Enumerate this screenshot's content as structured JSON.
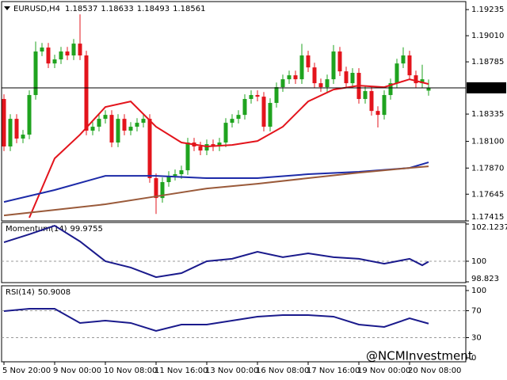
{
  "chart_data": [
    {
      "type": "candlestick",
      "title": "EURUSD,H4",
      "categories": [
        "5 Nov 20:00",
        null,
        null,
        null,
        null,
        null,
        null,
        null,
        "9 Nov 00:00",
        null,
        null,
        null,
        null,
        null,
        null,
        null,
        "10 Nov 08:00",
        null,
        null,
        null,
        null,
        null,
        null,
        null,
        "11 Nov 16:00",
        null,
        null,
        null,
        null,
        null,
        null,
        null,
        "13 Nov 00:00",
        null,
        null,
        null,
        null,
        null,
        null,
        null,
        "16 Nov 08:00",
        null,
        null,
        null,
        null,
        null,
        null,
        null,
        "17 Nov 16:00",
        null,
        null,
        null,
        null,
        null,
        null,
        null,
        "19 Nov 00:00",
        null,
        null,
        null,
        null,
        null,
        null,
        null,
        "20 Nov 08:00",
        null,
        null,
        null
      ],
      "open": [
        1.18465,
        1.18056,
        1.18294,
        1.18124,
        1.18158,
        1.18499,
        1.18874,
        1.18908,
        1.18771,
        1.18806,
        1.18874,
        1.1884,
        1.18942,
        1.1884,
        1.18192,
        1.18226,
        1.18294,
        1.18328,
        1.1809,
        1.18294,
        1.18192,
        1.18226,
        1.1826,
        1.18294,
        1.17783,
        1.17612,
        1.17749,
        1.17803,
        1.17817,
        1.17851,
        1.1809,
        1.18056,
        1.18021,
        1.18076,
        1.18056,
        1.1809,
        1.1826,
        1.18294,
        1.18328,
        1.18465,
        1.18499,
        1.18485,
        1.18226,
        1.18431,
        1.18567,
        1.18635,
        1.18669,
        1.18635,
        1.1884,
        1.18737,
        1.18601,
        1.18567,
        1.18635,
        1.18874,
        1.18703,
        1.18601,
        1.1869,
        1.18465,
        1.18533,
        1.18362,
        1.18328,
        1.18499,
        1.18601,
        1.18771,
        1.1884,
        1.18669,
        1.18601,
        1.18537
      ],
      "high": [
        1.18505,
        1.18334,
        1.18334,
        1.18198,
        1.18539,
        1.1896,
        1.18948,
        1.18948,
        1.18846,
        1.18914,
        1.18914,
        1.18982,
        1.19194,
        1.1888,
        1.18266,
        1.18334,
        1.18368,
        1.18368,
        1.18334,
        1.18334,
        1.18266,
        1.183,
        1.18334,
        1.18334,
        1.17823,
        1.17789,
        1.17843,
        1.17857,
        1.17891,
        1.1813,
        1.1813,
        1.18096,
        1.18116,
        1.18116,
        1.1813,
        1.183,
        1.18334,
        1.18368,
        1.18505,
        1.18539,
        1.18539,
        1.18525,
        1.18471,
        1.18607,
        1.18675,
        1.18709,
        1.18709,
        1.1894,
        1.1888,
        1.18777,
        1.18641,
        1.18675,
        1.1893,
        1.18914,
        1.18743,
        1.1873,
        1.1873,
        1.18573,
        1.18573,
        1.18402,
        1.18539,
        1.18641,
        1.18811,
        1.1891,
        1.1888,
        1.18709,
        1.1876,
        1.18633
      ],
      "low": [
        1.18016,
        1.18016,
        1.18084,
        1.18084,
        1.18118,
        1.18459,
        1.18834,
        1.18731,
        1.18731,
        1.18766,
        1.188,
        1.188,
        1.188,
        1.18152,
        1.18152,
        1.18186,
        1.18254,
        1.1805,
        1.1805,
        1.18152,
        1.18152,
        1.18186,
        1.1822,
        1.17743,
        1.17475,
        1.17572,
        1.17709,
        1.17763,
        1.17777,
        1.17811,
        1.18016,
        1.17981,
        1.17981,
        1.18016,
        1.18016,
        1.1805,
        1.1822,
        1.18254,
        1.18288,
        1.18425,
        1.18445,
        1.18186,
        1.18186,
        1.18391,
        1.18527,
        1.18595,
        1.18595,
        1.18595,
        1.18697,
        1.18561,
        1.18527,
        1.18527,
        1.18595,
        1.18663,
        1.18561,
        1.18561,
        1.18425,
        1.18425,
        1.18322,
        1.1822,
        1.18288,
        1.18459,
        1.18561,
        1.18731,
        1.18629,
        1.18561,
        1.18561,
        1.18493
      ],
      "close": [
        1.18056,
        1.18294,
        1.18124,
        1.18158,
        1.18499,
        1.18874,
        1.18908,
        1.18771,
        1.18806,
        1.18874,
        1.1884,
        1.18942,
        1.1884,
        1.18192,
        1.18226,
        1.18294,
        1.18328,
        1.1809,
        1.18294,
        1.18192,
        1.18226,
        1.1826,
        1.18294,
        1.17783,
        1.17612,
        1.17749,
        1.17803,
        1.17817,
        1.17851,
        1.1809,
        1.18056,
        1.18021,
        1.18076,
        1.18056,
        1.1809,
        1.1826,
        1.18294,
        1.18328,
        1.18465,
        1.18499,
        1.18485,
        1.18226,
        1.18431,
        1.18567,
        1.18635,
        1.18669,
        1.18635,
        1.1884,
        1.18737,
        1.18601,
        1.18567,
        1.18635,
        1.18874,
        1.18703,
        1.18601,
        1.1869,
        1.18465,
        1.18533,
        1.18362,
        1.18328,
        1.18499,
        1.18601,
        1.18771,
        1.1884,
        1.18669,
        1.18601,
        1.18635,
        1.18561
      ],
      "up_color": "#1fa31f",
      "down_color": "#e3141c",
      "series": [
        {
          "color": "#e3141c",
          "x": [
            4,
            8,
            12,
            16,
            20,
            24,
            28,
            32,
            36,
            40,
            44,
            48,
            52,
            56,
            60,
            64,
            67
          ],
          "values": [
            1.17442,
            1.17953,
            1.18158,
            1.18396,
            1.18444,
            1.18226,
            1.1809,
            1.18056,
            1.18069,
            1.18103,
            1.18226,
            1.18444,
            1.18546,
            1.1858,
            1.18567,
            1.18635,
            1.18594
          ]
        },
        {
          "color": "#1c2aa8",
          "x": [
            0,
            8,
            16,
            24,
            32,
            40,
            48,
            56,
            64,
            67
          ],
          "values": [
            1.17578,
            1.17681,
            1.17803,
            1.17803,
            1.17783,
            1.17783,
            1.17817,
            1.17838,
            1.17871,
            1.17919
          ]
        },
        {
          "color": "#9a5a3a",
          "x": [
            0,
            8,
            16,
            24,
            32,
            40,
            48,
            56,
            64,
            67
          ],
          "values": [
            1.17462,
            1.1751,
            1.17558,
            1.17626,
            1.17694,
            1.17735,
            1.17783,
            1.1783,
            1.17871,
            1.17885
          ]
        }
      ],
      "ylim": [
        1.17415,
        1.19304
      ],
      "yticks": [
        1.19235,
        {
          "value": 1.1901,
          "label": "1.19010"
        },
        1.18785,
        1.18335,
        {
          "value": 1.181,
          "label": "1.18100"
        },
        {
          "value": 1.1787,
          "label": "1.17870"
        },
        1.17645,
        1.17415
      ]
    },
    {
      "type": "line",
      "title": "Momentum(14)",
      "series": [
        {
          "color": "#1a1a8c",
          "x": [
            0,
            4,
            8,
            12,
            16,
            20,
            24,
            28,
            32,
            36,
            40,
            44,
            48,
            52,
            56,
            60,
            64,
            66,
            67
          ],
          "values": [
            101.08,
            101.54,
            102.03,
            101.13,
            100,
            99.64,
            99.09,
            99.32,
            100,
            100.14,
            100.54,
            100.23,
            100.45,
            100.23,
            100.14,
            99.86,
            100.14,
            99.77,
            99.9755
          ]
        }
      ],
      "ylim": [
        98.823,
        102.1237
      ],
      "yticks": [
        102.1237,
        100,
        98.823
      ]
    },
    {
      "type": "line",
      "title": "RSI(14)",
      "series": [
        {
          "color": "#1a1a8c",
          "x": [
            0,
            4,
            8,
            12,
            16,
            20,
            24,
            28,
            32,
            36,
            40,
            44,
            48,
            52,
            56,
            60,
            64,
            67
          ],
          "values": [
            69.4,
            72.9,
            72.9,
            51.8,
            55.3,
            51.8,
            40,
            49.4,
            49.4,
            55.3,
            61.2,
            63.5,
            63.5,
            61.2,
            49.4,
            45.9,
            58.8,
            50.9008
          ]
        }
      ],
      "ylim": [
        0,
        100
      ],
      "yticks": [
        100,
        70,
        30,
        0
      ]
    }
  ],
  "watermark": "@NCMInvestment"
}
